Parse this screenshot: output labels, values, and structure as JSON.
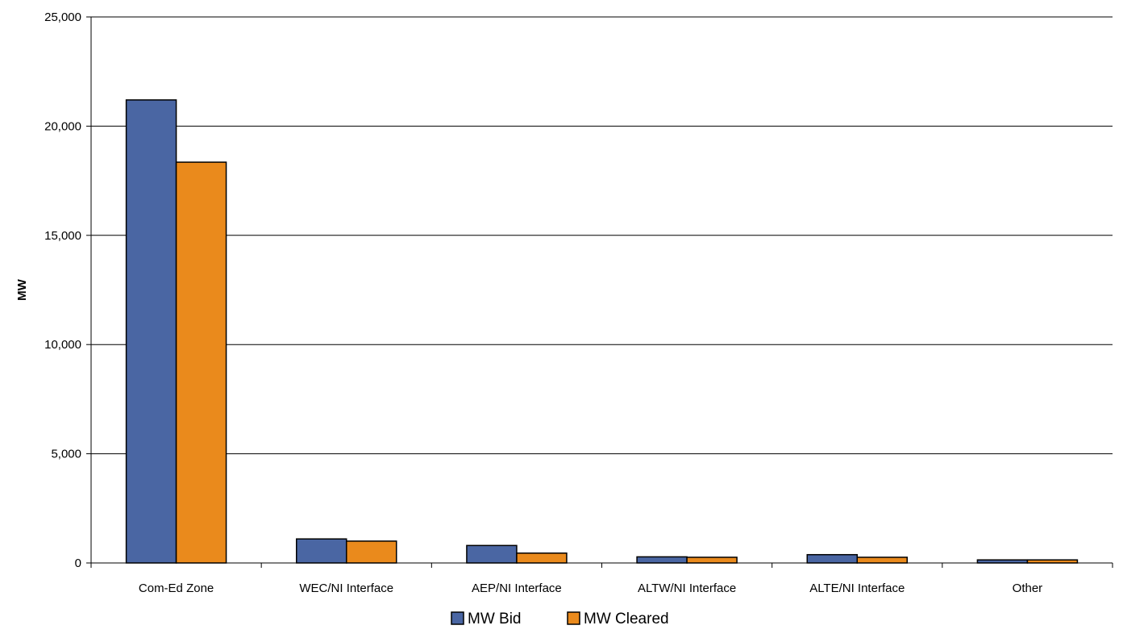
{
  "chart_data": {
    "type": "bar",
    "title": "",
    "xlabel": "",
    "ylabel": "MW",
    "ylim": [
      0,
      25000
    ],
    "yticks": [
      0,
      5000,
      10000,
      15000,
      20000,
      25000
    ],
    "ytick_labels": [
      "0",
      "5,000",
      "10,000",
      "15,000",
      "20,000",
      "25,000"
    ],
    "categories": [
      "Com-Ed Zone",
      "WEC/NI Interface",
      "AEP/NI Interface",
      "ALTW/NI Interface",
      "ALTE/NI Interface",
      "Other"
    ],
    "series": [
      {
        "name": "MW Bid",
        "color": "#4a66a3",
        "values": [
          21200,
          1100,
          800,
          280,
          380,
          140
        ]
      },
      {
        "name": "MW Cleared",
        "color": "#ea8a1c",
        "values": [
          18350,
          1000,
          450,
          260,
          260,
          140
        ]
      }
    ],
    "grid": true,
    "legend_position": "bottom-center"
  }
}
